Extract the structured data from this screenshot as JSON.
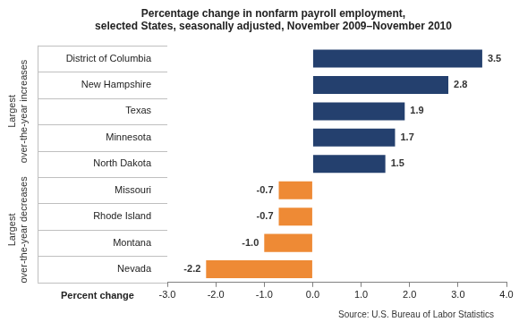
{
  "chart_data": {
    "type": "bar",
    "orientation": "horizontal",
    "title": [
      "Percentage change in nonfarm payroll employment,",
      "selected States, seasonally adjusted, November 2009–November 2010"
    ],
    "categories": [
      "District of Columbia",
      "New Hampshire",
      "Texas",
      "Minnesota",
      "North Dakota",
      "Missouri",
      "Rhode Island",
      "Montana",
      "Nevada"
    ],
    "values": [
      3.5,
      2.8,
      1.9,
      1.7,
      1.5,
      -0.7,
      -0.7,
      -1.0,
      -2.2
    ],
    "value_labels": [
      "3.5",
      "2.8",
      "1.9",
      "1.7",
      "1.5",
      "-0.7",
      "-0.7",
      "-1.0",
      "-2.2"
    ],
    "colors": [
      "#24406e",
      "#24406e",
      "#24406e",
      "#24406e",
      "#24406e",
      "#ee8a35",
      "#ee8a35",
      "#ee8a35",
      "#ee8a35"
    ],
    "groups": [
      {
        "label": [
          "Largest",
          "over-the-year increases"
        ],
        "categories": [
          "District of Columbia",
          "New Hampshire",
          "Texas",
          "Minnesota",
          "North Dakota"
        ]
      },
      {
        "label": [
          "Largest",
          "over-the-year decreases"
        ],
        "categories": [
          "Missouri",
          "Rhode Island",
          "Montana",
          "Nevada"
        ]
      }
    ],
    "xlabel": "Percent change",
    "source": "Source: U.S. Bureau of Labor Statistics",
    "xlim": [
      -3,
      4
    ],
    "xticks": [
      {
        "value": -3,
        "label": "-3.0"
      },
      {
        "value": -2,
        "label": "-2.0"
      },
      {
        "value": -1,
        "label": "-1.0"
      },
      {
        "value": 0,
        "label": "0.0"
      },
      {
        "value": 1,
        "label": "1.0"
      },
      {
        "value": 2,
        "label": "2.0"
      },
      {
        "value": 3,
        "label": "3.0"
      },
      {
        "value": 4,
        "label": "4.0"
      }
    ],
    "grid": false,
    "data_labels": true
  }
}
